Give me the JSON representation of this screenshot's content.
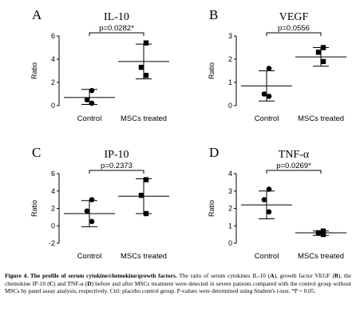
{
  "chart_data": [
    {
      "type": "dot",
      "panel": "A",
      "title": "IL-10",
      "y_label": "Ratio",
      "categories": [
        "Control",
        "MSCs treated"
      ],
      "markers": [
        "circle",
        "square"
      ],
      "points": [
        [
          1.3,
          0.5,
          0.2
        ],
        [
          5.4,
          3.3,
          2.6
        ]
      ],
      "means": [
        0.7,
        3.8
      ],
      "error_high": [
        1.4,
        5.3
      ],
      "error_low": [
        0.1,
        2.3
      ],
      "ylim": [
        0,
        6
      ],
      "yticks": [
        0,
        2,
        4,
        6
      ],
      "p_label": "p=0.0282*",
      "color": "#000000"
    },
    {
      "type": "dot",
      "panel": "B",
      "title": "VEGF",
      "y_label": "Ratio",
      "categories": [
        "Control",
        "MSCs treated"
      ],
      "markers": [
        "circle",
        "square"
      ],
      "points": [
        [
          1.6,
          0.5,
          0.4
        ],
        [
          2.5,
          2.3,
          1.9
        ]
      ],
      "means": [
        0.85,
        2.1
      ],
      "error_high": [
        1.5,
        2.5
      ],
      "error_low": [
        0.2,
        1.7
      ],
      "ylim": [
        0,
        3
      ],
      "yticks": [
        0,
        1,
        2,
        3
      ],
      "p_label": "p=0.0556",
      "color": "#000000"
    },
    {
      "type": "dot",
      "panel": "C",
      "title": "IP-10",
      "y_label": "Ratio",
      "categories": [
        "Control",
        "MSCs treated"
      ],
      "markers": [
        "circle",
        "square"
      ],
      "points": [
        [
          3.0,
          1.7,
          0.5
        ],
        [
          5.3,
          3.5,
          1.4
        ]
      ],
      "means": [
        1.4,
        3.4
      ],
      "error_high": [
        2.9,
        5.4
      ],
      "error_low": [
        -0.1,
        1.4
      ],
      "ylim": [
        -2,
        6
      ],
      "yticks": [
        -2,
        0,
        2,
        4,
        6
      ],
      "p_label": "p=0.2373",
      "color": "#000000"
    },
    {
      "type": "dot",
      "panel": "D",
      "title": "TNF-α",
      "y_label": "Ratio",
      "categories": [
        "Control",
        "MSCs treated"
      ],
      "markers": [
        "circle",
        "square"
      ],
      "points": [
        [
          3.1,
          2.5,
          1.8
        ],
        [
          0.7,
          0.6,
          0.5
        ]
      ],
      "means": [
        2.2,
        0.6
      ],
      "error_high": [
        3.0,
        0.7
      ],
      "error_low": [
        1.4,
        0.45
      ],
      "ylim": [
        0,
        4
      ],
      "yticks": [
        0,
        1,
        2,
        3,
        4
      ],
      "p_label": "p=0.0269*",
      "color": "#000000"
    }
  ],
  "caption": [
    {
      "text": "Figure 4. The profile of serum cytokine/chemokine/growth factors.",
      "bold": true
    },
    {
      "text": " The ratio of serum cytokines IL-10 (",
      "bold": false
    },
    {
      "text": "A",
      "bold": true
    },
    {
      "text": "), growth factor VEGF (",
      "bold": false
    },
    {
      "text": "B",
      "bold": true
    },
    {
      "text": "), the chemokine IP-10 (",
      "bold": false
    },
    {
      "text": "C",
      "bold": true
    },
    {
      "text": ") and TNF-α (",
      "bold": false
    },
    {
      "text": "D",
      "bold": true
    },
    {
      "text": ") before and after MSCs treatment were detected in severe patients compared with the control group without MSCs by panel assay analysis, respectively. Ctrl: placebo control group. P-values were determined using Student's t-test. *P < 0.05.",
      "bold": false
    }
  ]
}
